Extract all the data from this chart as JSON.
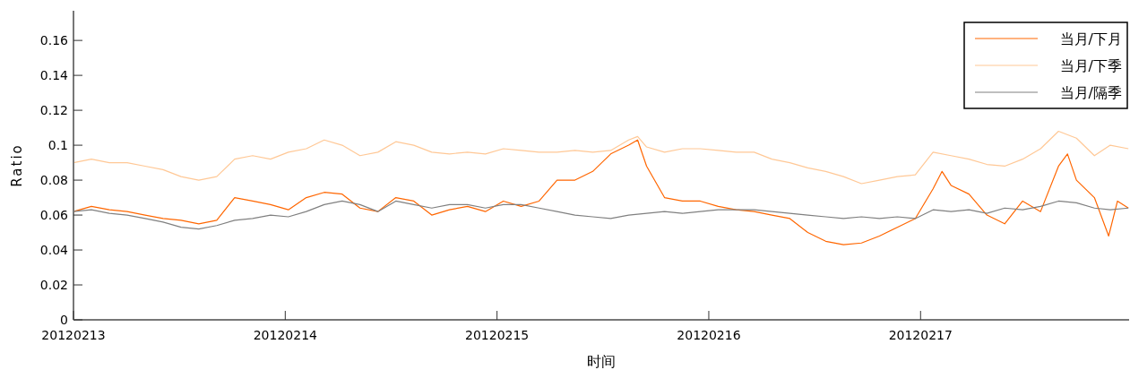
{
  "chart_data": {
    "type": "line",
    "xlabel": "时间",
    "ylabel": "Ratio",
    "legend": "top right",
    "xlim": [
      "2012-02-13T00:00",
      "2012-02-17T23:38"
    ],
    "ylim": [
      0,
      0.177
    ],
    "xticks": [
      {
        "value": "2012-02-13",
        "label": "20120213"
      },
      {
        "value": "2012-02-14",
        "label": "20120214"
      },
      {
        "value": "2012-02-15",
        "label": "20120215"
      },
      {
        "value": "2012-02-16",
        "label": "20120216"
      },
      {
        "value": "2012-02-17",
        "label": "20120217"
      }
    ],
    "yticks": [
      0,
      0.02,
      0.04,
      0.06,
      0.08,
      0.1,
      0.12,
      0.14,
      0.16
    ],
    "series": [
      {
        "name": "当月/下月",
        "color": "#ff6600",
        "x": [
          "2012-02-13T00:00",
          "2012-02-13T02:02",
          "2012-02-13T04:04",
          "2012-02-13T06:05",
          "2012-02-13T08:07",
          "2012-02-13T10:09",
          "2012-02-13T12:11",
          "2012-02-13T14:12",
          "2012-02-13T16:14",
          "2012-02-13T18:16",
          "2012-02-13T20:18",
          "2012-02-13T22:20",
          "2012-02-14T00:21",
          "2012-02-14T02:23",
          "2012-02-14T04:25",
          "2012-02-14T06:27",
          "2012-02-14T08:28",
          "2012-02-14T10:30",
          "2012-02-14T12:32",
          "2012-02-14T14:34",
          "2012-02-14T16:36",
          "2012-02-14T18:37",
          "2012-02-14T20:39",
          "2012-02-14T22:41",
          "2012-02-15T00:43",
          "2012-02-15T02:44",
          "2012-02-15T04:46",
          "2012-02-15T06:48",
          "2012-02-15T08:50",
          "2012-02-15T10:51",
          "2012-02-15T12:53",
          "2012-02-15T14:55",
          "2012-02-15T15:56",
          "2012-02-15T16:57",
          "2012-02-15T18:59",
          "2012-02-15T21:00",
          "2012-02-15T23:02",
          "2012-02-16T01:04",
          "2012-02-16T03:06",
          "2012-02-16T05:08",
          "2012-02-16T07:09",
          "2012-02-16T09:11",
          "2012-02-16T11:13",
          "2012-02-16T13:15",
          "2012-02-16T15:16",
          "2012-02-16T17:18",
          "2012-02-16T19:20",
          "2012-02-16T21:22",
          "2012-02-16T23:24",
          "2012-02-17T01:25",
          "2012-02-17T02:26",
          "2012-02-17T03:27",
          "2012-02-17T05:29",
          "2012-02-17T07:31",
          "2012-02-17T09:32",
          "2012-02-17T11:34",
          "2012-02-17T13:36",
          "2012-02-17T15:38",
          "2012-02-17T16:39",
          "2012-02-17T17:40",
          "2012-02-17T19:42",
          "2012-02-17T21:19",
          "2012-02-17T22:19",
          "2012-02-17T23:33"
        ],
        "values": [
          0.062,
          0.065,
          0.063,
          0.062,
          0.06,
          0.058,
          0.057,
          0.055,
          0.057,
          0.07,
          0.068,
          0.066,
          0.063,
          0.07,
          0.073,
          0.072,
          0.064,
          0.062,
          0.07,
          0.068,
          0.06,
          0.063,
          0.065,
          0.062,
          0.068,
          0.065,
          0.068,
          0.08,
          0.08,
          0.085,
          0.095,
          0.1,
          0.103,
          0.088,
          0.07,
          0.068,
          0.068,
          0.065,
          0.063,
          0.062,
          0.06,
          0.058,
          0.05,
          0.045,
          0.043,
          0.044,
          0.048,
          0.053,
          0.058,
          0.075,
          0.085,
          0.077,
          0.072,
          0.06,
          0.055,
          0.068,
          0.062,
          0.088,
          0.095,
          0.08,
          0.07,
          0.048,
          0.068,
          0.064
        ]
      },
      {
        "name": "当月/下季",
        "color": "#ffc896",
        "x": [
          "2012-02-13T00:00",
          "2012-02-13T02:02",
          "2012-02-13T04:04",
          "2012-02-13T06:05",
          "2012-02-13T08:07",
          "2012-02-13T10:09",
          "2012-02-13T12:11",
          "2012-02-13T14:12",
          "2012-02-13T16:14",
          "2012-02-13T18:16",
          "2012-02-13T20:18",
          "2012-02-13T22:20",
          "2012-02-14T00:21",
          "2012-02-14T02:23",
          "2012-02-14T04:25",
          "2012-02-14T06:27",
          "2012-02-14T08:28",
          "2012-02-14T10:30",
          "2012-02-14T12:32",
          "2012-02-14T14:34",
          "2012-02-14T16:36",
          "2012-02-14T18:37",
          "2012-02-14T20:39",
          "2012-02-14T22:41",
          "2012-02-15T00:43",
          "2012-02-15T02:44",
          "2012-02-15T04:46",
          "2012-02-15T06:48",
          "2012-02-15T08:50",
          "2012-02-15T10:51",
          "2012-02-15T12:53",
          "2012-02-15T14:55",
          "2012-02-15T15:56",
          "2012-02-15T16:57",
          "2012-02-15T18:59",
          "2012-02-15T21:00",
          "2012-02-15T23:02",
          "2012-02-16T01:04",
          "2012-02-16T03:06",
          "2012-02-16T05:08",
          "2012-02-16T07:09",
          "2012-02-16T09:11",
          "2012-02-16T11:13",
          "2012-02-16T13:15",
          "2012-02-16T15:16",
          "2012-02-16T17:18",
          "2012-02-16T19:20",
          "2012-02-16T21:22",
          "2012-02-16T23:24",
          "2012-02-17T01:25",
          "2012-02-17T03:27",
          "2012-02-17T05:29",
          "2012-02-17T07:31",
          "2012-02-17T09:32",
          "2012-02-17T11:34",
          "2012-02-17T13:36",
          "2012-02-17T15:38",
          "2012-02-17T17:40",
          "2012-02-17T19:42",
          "2012-02-17T21:30",
          "2012-02-17T23:33"
        ],
        "values": [
          0.09,
          0.092,
          0.09,
          0.09,
          0.088,
          0.086,
          0.082,
          0.08,
          0.082,
          0.092,
          0.094,
          0.092,
          0.096,
          0.098,
          0.103,
          0.1,
          0.094,
          0.096,
          0.102,
          0.1,
          0.096,
          0.095,
          0.096,
          0.095,
          0.098,
          0.097,
          0.096,
          0.096,
          0.097,
          0.096,
          0.097,
          0.103,
          0.105,
          0.099,
          0.096,
          0.098,
          0.098,
          0.097,
          0.096,
          0.096,
          0.092,
          0.09,
          0.087,
          0.085,
          0.082,
          0.078,
          0.08,
          0.082,
          0.083,
          0.096,
          0.094,
          0.092,
          0.089,
          0.088,
          0.092,
          0.098,
          0.108,
          0.104,
          0.094,
          0.1,
          0.098
        ]
      },
      {
        "name": "当月/隔季",
        "color": "#808080",
        "x": [
          "2012-02-13T00:00",
          "2012-02-13T02:02",
          "2012-02-13T04:04",
          "2012-02-13T06:05",
          "2012-02-13T08:07",
          "2012-02-13T10:09",
          "2012-02-13T12:11",
          "2012-02-13T14:12",
          "2012-02-13T16:14",
          "2012-02-13T18:16",
          "2012-02-13T20:18",
          "2012-02-13T22:20",
          "2012-02-14T00:21",
          "2012-02-14T02:23",
          "2012-02-14T04:25",
          "2012-02-14T06:27",
          "2012-02-14T08:28",
          "2012-02-14T10:30",
          "2012-02-14T12:32",
          "2012-02-14T14:34",
          "2012-02-14T16:36",
          "2012-02-14T18:37",
          "2012-02-14T20:39",
          "2012-02-14T22:41",
          "2012-02-15T00:43",
          "2012-02-15T02:44",
          "2012-02-15T04:46",
          "2012-02-15T06:48",
          "2012-02-15T08:50",
          "2012-02-15T10:51",
          "2012-02-15T12:53",
          "2012-02-15T14:55",
          "2012-02-15T16:57",
          "2012-02-15T18:59",
          "2012-02-15T21:00",
          "2012-02-15T23:02",
          "2012-02-16T01:04",
          "2012-02-16T03:06",
          "2012-02-16T05:08",
          "2012-02-16T07:09",
          "2012-02-16T09:11",
          "2012-02-16T11:13",
          "2012-02-16T13:15",
          "2012-02-16T15:16",
          "2012-02-16T17:18",
          "2012-02-16T19:20",
          "2012-02-16T21:22",
          "2012-02-16T23:24",
          "2012-02-17T01:25",
          "2012-02-17T03:27",
          "2012-02-17T05:29",
          "2012-02-17T07:31",
          "2012-02-17T09:32",
          "2012-02-17T11:34",
          "2012-02-17T13:36",
          "2012-02-17T15:38",
          "2012-02-17T17:40",
          "2012-02-17T19:42",
          "2012-02-17T21:30",
          "2012-02-17T23:33"
        ],
        "values": [
          0.062,
          0.063,
          0.061,
          0.06,
          0.058,
          0.056,
          0.053,
          0.052,
          0.054,
          0.057,
          0.058,
          0.06,
          0.059,
          0.062,
          0.066,
          0.068,
          0.066,
          0.062,
          0.068,
          0.066,
          0.064,
          0.066,
          0.066,
          0.064,
          0.066,
          0.066,
          0.064,
          0.062,
          0.06,
          0.059,
          0.058,
          0.06,
          0.061,
          0.062,
          0.061,
          0.062,
          0.063,
          0.063,
          0.063,
          0.062,
          0.061,
          0.06,
          0.059,
          0.058,
          0.059,
          0.058,
          0.059,
          0.058,
          0.063,
          0.062,
          0.063,
          0.061,
          0.064,
          0.063,
          0.065,
          0.068,
          0.067,
          0.064,
          0.063,
          0.064
        ]
      }
    ]
  }
}
